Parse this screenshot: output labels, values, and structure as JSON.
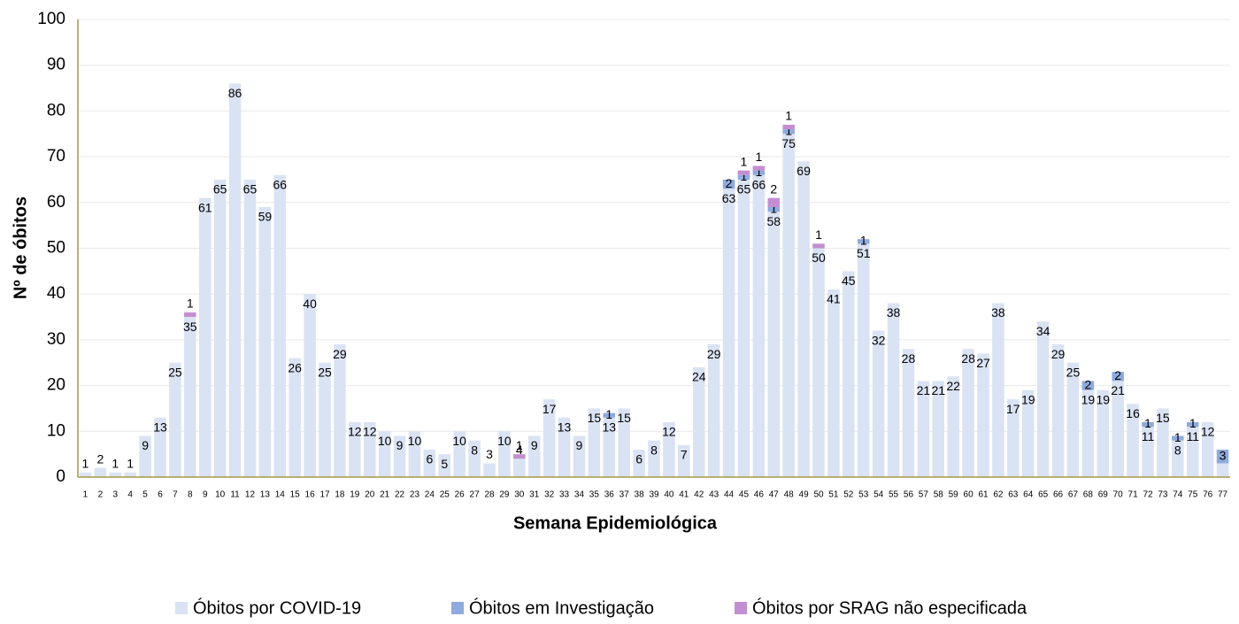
{
  "chart_data": {
    "type": "stacked_bar",
    "x_label": "Semana Epidemiológica",
    "y_label": "Nº de óbitos",
    "categories": [
      "1",
      "2",
      "3",
      "4",
      "5",
      "6",
      "7",
      "8",
      "9",
      "10",
      "11",
      "12",
      "13",
      "14",
      "15",
      "16",
      "17",
      "18",
      "19",
      "20",
      "21",
      "22",
      "23",
      "24",
      "25",
      "26",
      "27",
      "28",
      "29",
      "30",
      "31",
      "32",
      "33",
      "34",
      "35",
      "36",
      "37",
      "38",
      "39",
      "40",
      "41",
      "42",
      "43",
      "44",
      "45",
      "46",
      "47",
      "48",
      "49",
      "50",
      "51",
      "52",
      "53",
      "54",
      "55",
      "56",
      "57",
      "58",
      "59",
      "60",
      "61",
      "62",
      "63",
      "64",
      "65",
      "66",
      "67",
      "68",
      "69",
      "70",
      "71",
      "72",
      "73",
      "74",
      "75",
      "76",
      "77"
    ],
    "series": [
      {
        "name": "Óbitos por COVID-19",
        "color": "#dae3f3",
        "values": [
          1,
          2,
          1,
          1,
          9,
          13,
          25,
          35,
          61,
          65,
          86,
          65,
          59,
          66,
          26,
          40,
          25,
          29,
          12,
          12,
          10,
          9,
          10,
          6,
          5,
          10,
          8,
          3,
          10,
          4,
          9,
          17,
          13,
          9,
          15,
          13,
          15,
          6,
          8,
          12,
          7,
          24,
          29,
          63,
          65,
          66,
          58,
          75,
          69,
          50,
          41,
          45,
          51,
          32,
          38,
          28,
          21,
          21,
          22,
          28,
          27,
          38,
          17,
          19,
          34,
          29,
          25,
          19,
          19,
          21,
          16,
          11,
          15,
          8,
          11,
          12,
          3
        ]
      },
      {
        "name": "Óbitos em Investigação",
        "color": "#8faadc",
        "values": [
          null,
          null,
          null,
          null,
          null,
          null,
          null,
          null,
          null,
          null,
          null,
          null,
          null,
          null,
          null,
          null,
          null,
          null,
          null,
          null,
          null,
          null,
          null,
          null,
          null,
          null,
          null,
          null,
          null,
          null,
          null,
          null,
          null,
          null,
          null,
          1,
          null,
          null,
          null,
          null,
          null,
          null,
          null,
          2,
          1,
          1,
          1,
          1,
          null,
          null,
          null,
          null,
          1,
          null,
          null,
          null,
          null,
          null,
          null,
          null,
          null,
          null,
          null,
          null,
          null,
          null,
          null,
          2,
          null,
          2,
          null,
          1,
          null,
          1,
          1,
          null,
          3
        ]
      },
      {
        "name": "Óbitos por SRAG não especificada",
        "color": "#c38fd0",
        "values": [
          null,
          null,
          null,
          null,
          null,
          null,
          null,
          1,
          null,
          null,
          null,
          null,
          null,
          null,
          null,
          null,
          null,
          null,
          null,
          null,
          null,
          null,
          null,
          null,
          null,
          null,
          null,
          null,
          null,
          1,
          null,
          null,
          null,
          null,
          null,
          null,
          null,
          null,
          null,
          null,
          null,
          null,
          null,
          null,
          1,
          1,
          2,
          1,
          null,
          1,
          null,
          null,
          null,
          null,
          null,
          null,
          null,
          null,
          null,
          null,
          null,
          null,
          null,
          null,
          null,
          null,
          null,
          null,
          null,
          null,
          null,
          null,
          null,
          null,
          null,
          null,
          null
        ]
      }
    ],
    "ylim": [
      0,
      100
    ],
    "yticks": [
      0,
      10,
      20,
      30,
      40,
      50,
      60,
      70,
      80,
      90,
      100
    ],
    "grid": true,
    "legend": "bottom"
  }
}
